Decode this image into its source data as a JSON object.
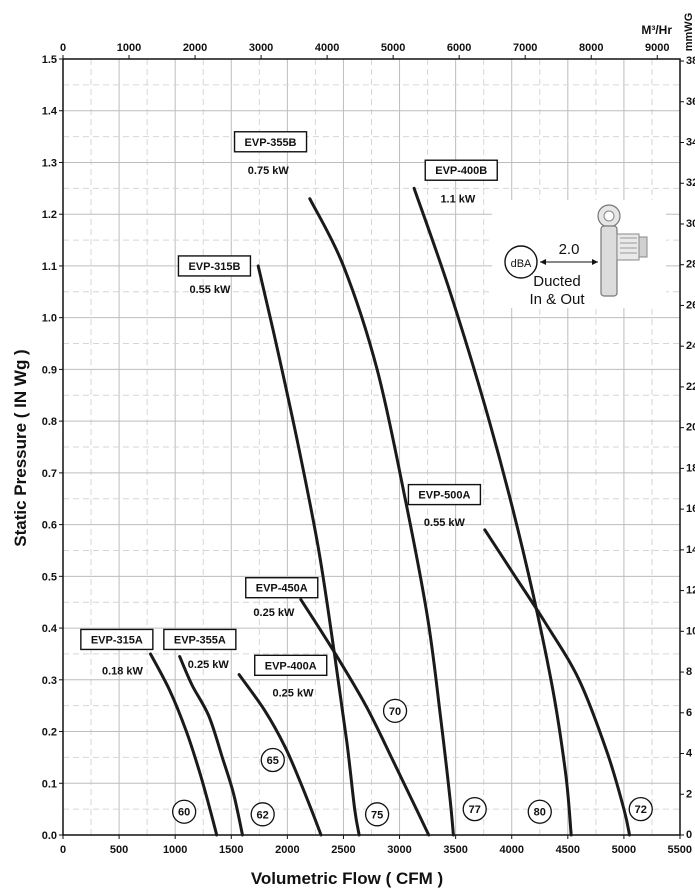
{
  "chart_data": {
    "type": "line",
    "title": "",
    "xlabel": "Volumetric Flow ( CFM )",
    "ylabel": "Static Pressure (   IN Wg   )",
    "x_ticks": [
      "0",
      "500",
      "1000",
      "1500",
      "2000",
      "2500",
      "3000",
      "3500",
      "4000",
      "4500",
      "5000",
      "5500"
    ],
    "y_ticks": [
      "0.0",
      "0.1",
      "0.2",
      "0.3",
      "0.4",
      "0.5",
      "0.6",
      "0.7",
      "0.8",
      "0.9",
      "1.0",
      "1.1",
      "1.2",
      "1.3",
      "1.4",
      "1.5"
    ],
    "xlim": [
      0,
      5500
    ],
    "ylim": [
      0,
      1.5
    ],
    "top_axis": {
      "unit_label": "M³/Hr",
      "ticks": [
        "0",
        "1000",
        "2000",
        "3000",
        "4000",
        "5000",
        "6000",
        "7000",
        "8000",
        "9000"
      ],
      "m3hr_per_cfm": 1.699
    },
    "right_axis": {
      "unit_label": "mmWG",
      "ticks": [
        "0",
        "2",
        "4",
        "6",
        "8",
        "10",
        "12",
        "14",
        "16",
        "18",
        "20",
        "22",
        "24",
        "26",
        "28",
        "30",
        "32",
        "34",
        "36",
        "38"
      ],
      "mmwg_per_inwg": 25.4
    },
    "grid": true,
    "series": [
      {
        "name": "EVP-315A",
        "power": "0.18 kW",
        "points": [
          [
            780,
            0.35
          ],
          [
            950,
            0.28
          ],
          [
            1100,
            0.2
          ],
          [
            1220,
            0.12
          ],
          [
            1310,
            0.05
          ],
          [
            1370,
            0.0
          ]
        ]
      },
      {
        "name": "EVP-355A",
        "power": "0.25 kW",
        "points": [
          [
            1040,
            0.345
          ],
          [
            1150,
            0.29
          ],
          [
            1300,
            0.23
          ],
          [
            1420,
            0.15
          ],
          [
            1520,
            0.08
          ],
          [
            1600,
            0.0
          ]
        ]
      },
      {
        "name": "EVP-400A",
        "power": "0.25 kW",
        "points": [
          [
            1570,
            0.31
          ],
          [
            1800,
            0.24
          ],
          [
            1980,
            0.17
          ],
          [
            2120,
            0.1
          ],
          [
            2230,
            0.04
          ],
          [
            2300,
            0.0
          ]
        ]
      },
      {
        "name": "EVP-315B",
        "power": "0.55 kW",
        "points": [
          [
            1740,
            1.1
          ],
          [
            1900,
            0.95
          ],
          [
            2100,
            0.75
          ],
          [
            2280,
            0.55
          ],
          [
            2420,
            0.35
          ],
          [
            2530,
            0.18
          ],
          [
            2600,
            0.05
          ],
          [
            2640,
            0.0
          ]
        ]
      },
      {
        "name": "EVP-450A",
        "power": "0.25 kW",
        "points": [
          [
            2120,
            0.455
          ],
          [
            2400,
            0.36
          ],
          [
            2700,
            0.25
          ],
          [
            2950,
            0.14
          ],
          [
            3150,
            0.05
          ],
          [
            3260,
            0.0
          ]
        ]
      },
      {
        "name": "EVP-355B",
        "power": "0.75 kW",
        "points": [
          [
            2200,
            1.23
          ],
          [
            2500,
            1.1
          ],
          [
            2800,
            0.9
          ],
          [
            3050,
            0.65
          ],
          [
            3250,
            0.42
          ],
          [
            3370,
            0.22
          ],
          [
            3450,
            0.07
          ],
          [
            3480,
            0.0
          ]
        ]
      },
      {
        "name": "EVP-400B",
        "power": "1.1 kW",
        "points": [
          [
            3130,
            1.25
          ],
          [
            3450,
            1.05
          ],
          [
            3800,
            0.8
          ],
          [
            4100,
            0.55
          ],
          [
            4350,
            0.3
          ],
          [
            4480,
            0.12
          ],
          [
            4530,
            0.0
          ]
        ]
      },
      {
        "name": "EVP-500A",
        "power": "0.55 kW",
        "points": [
          [
            3760,
            0.59
          ],
          [
            4000,
            0.51
          ],
          [
            4300,
            0.41
          ],
          [
            4600,
            0.3
          ],
          [
            4850,
            0.16
          ],
          [
            5000,
            0.05
          ],
          [
            5050,
            0.0
          ]
        ]
      }
    ],
    "model_labels": [
      {
        "model": "EVP-315A",
        "power": "0.18 kW",
        "box_x": 480,
        "box_y": 0.378,
        "power_x": 530,
        "power_y": 0.318
      },
      {
        "model": "EVP-355A",
        "power": "0.25 kW",
        "box_x": 1220,
        "box_y": 0.378,
        "power_x": 1295,
        "power_y": 0.331
      },
      {
        "model": "EVP-400A",
        "power": "0.25 kW",
        "box_x": 2030,
        "box_y": 0.328,
        "power_x": 2050,
        "power_y": 0.275
      },
      {
        "model": "EVP-315B",
        "power": "0.55 kW",
        "box_x": 1350,
        "box_y": 1.1,
        "power_x": 1310,
        "power_y": 1.055
      },
      {
        "model": "EVP-450A",
        "power": "0.25 kW",
        "box_x": 1950,
        "box_y": 0.478,
        "power_x": 1880,
        "power_y": 0.431
      },
      {
        "model": "EVP-355B",
        "power": "0.75 kW",
        "box_x": 1850,
        "box_y": 1.34,
        "power_x": 1830,
        "power_y": 1.285
      },
      {
        "model": "EVP-400B",
        "power": "1.1 kW",
        "box_x": 3550,
        "box_y": 1.285,
        "power_x": 3520,
        "power_y": 1.23
      },
      {
        "model": "EVP-500A",
        "power": "0.55 kW",
        "box_x": 3400,
        "box_y": 0.658,
        "power_x": 3400,
        "power_y": 0.605
      }
    ],
    "dba_markers": [
      {
        "value": "60",
        "x": 1080,
        "y": 0.045
      },
      {
        "value": "62",
        "x": 1780,
        "y": 0.04
      },
      {
        "value": "65",
        "x": 1870,
        "y": 0.145
      },
      {
        "value": "70",
        "x": 2960,
        "y": 0.24
      },
      {
        "value": "75",
        "x": 2800,
        "y": 0.04
      },
      {
        "value": "77",
        "x": 3670,
        "y": 0.05
      },
      {
        "value": "80",
        "x": 4250,
        "y": 0.045
      },
      {
        "value": "72",
        "x": 5150,
        "y": 0.05
      }
    ],
    "annotation": {
      "dba_label": "dBA",
      "distance": "2.0",
      "line1": "Ducted",
      "line2": "In & Out"
    }
  }
}
